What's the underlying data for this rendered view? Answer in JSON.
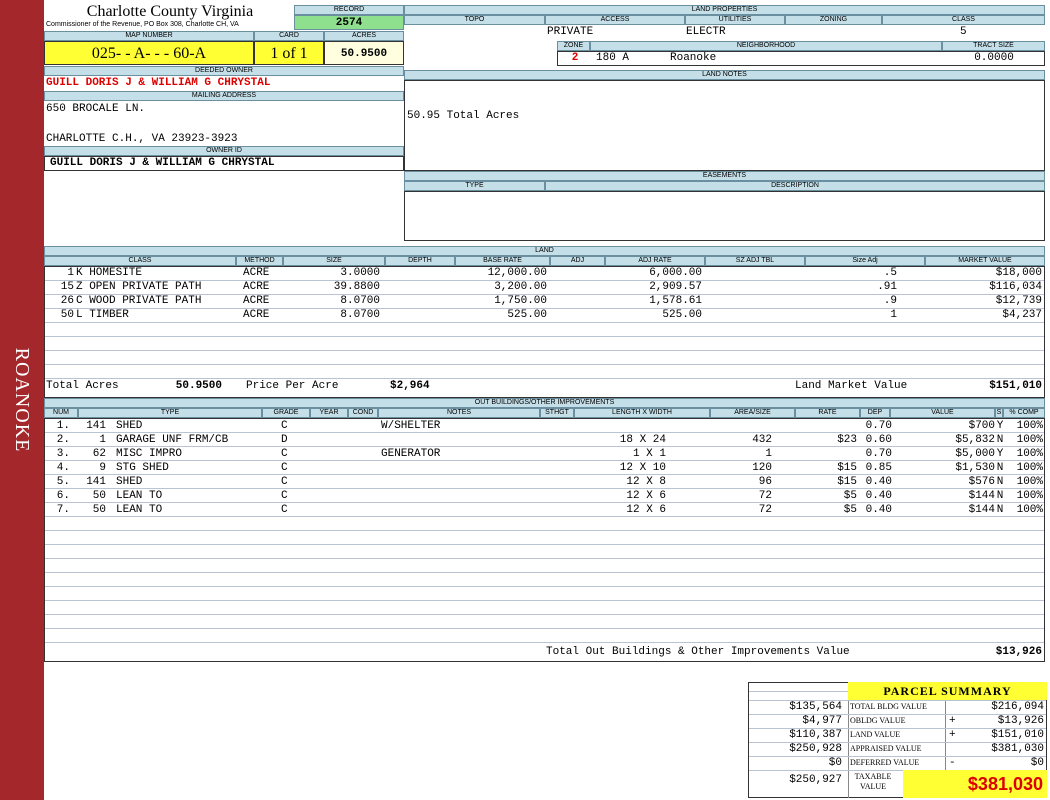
{
  "sidebar": "ROANOKE",
  "header": {
    "title": "Charlotte County Virginia",
    "subtitle": "Commissioner of the Revenue, PO Box 308, Charlotte CH, VA"
  },
  "record": {
    "label": "RECORD",
    "value": "2574"
  },
  "parcel": {
    "labels": [
      "MAP NUMBER",
      "CARD",
      "ACRES"
    ],
    "map_number": "025- - A- - - 60-A",
    "card": "1 of 1",
    "acres": "50.9500"
  },
  "owner": {
    "label": "DEEDED OWNER",
    "name": "GUILL DORIS J & WILLIAM G CHRYSTAL"
  },
  "mailing": {
    "label": "MAILING ADDRESS",
    "lines": [
      "650 BROCALE LN.",
      "CHARLOTTE C.H., VA 23923-3923"
    ]
  },
  "owner_id": {
    "label": "OWNER ID",
    "value": "GUILL DORIS J & WILLIAM G CHRYSTAL"
  },
  "land_properties": {
    "title": "LAND PROPERTIES",
    "headers": [
      "TOPO",
      "ACCESS",
      "UTILITIES",
      "ZONING",
      "CLASS"
    ],
    "access": "PRIVATE",
    "utilities": "ELECTR",
    "class": "5",
    "zone_headers": [
      "ZONE",
      "NEIGHBORHOOD",
      "TRACT SIZE"
    ],
    "zone": "2",
    "neighborhood_code": "180 A",
    "neighborhood": "Roanoke",
    "tract_size": "0.0000"
  },
  "land_notes": {
    "title": "LAND NOTES",
    "text": "50.95 Total Acres"
  },
  "easements": {
    "title": "EASEMENTS",
    "headers": [
      "TYPE",
      "DESCRIPTION"
    ]
  },
  "land": {
    "title": "LAND",
    "headers": [
      "CLASS",
      "METHOD",
      "SIZE",
      "DEPTH",
      "BASE RATE",
      "ADJ",
      "ADJ RATE",
      "SZ ADJ TBL",
      "Size Adj",
      "MARKET VALUE"
    ],
    "rows": [
      {
        "num": "1",
        "class": "K HOMESITE",
        "method": "ACRE",
        "size": "3.0000",
        "base_rate": "12,000.00",
        "adj_rate": "6,000.00",
        "size_adj": ".5",
        "market_value": "$18,000"
      },
      {
        "num": "15",
        "class": "Z OPEN PRIVATE PATH",
        "method": "ACRE",
        "size": "39.8800",
        "base_rate": "3,200.00",
        "adj_rate": "2,909.57",
        "size_adj": ".91",
        "market_value": "$116,034"
      },
      {
        "num": "26",
        "class": "C WOOD PRIVATE PATH",
        "method": "ACRE",
        "size": "8.0700",
        "base_rate": "1,750.00",
        "adj_rate": "1,578.61",
        "size_adj": ".9",
        "market_value": "$12,739"
      },
      {
        "num": "50",
        "class": "L TIMBER",
        "method": "ACRE",
        "size": "8.0700",
        "base_rate": "525.00",
        "adj_rate": "525.00",
        "size_adj": "1",
        "market_value": "$4,237"
      }
    ],
    "totals": {
      "acres_label": "Total Acres",
      "acres": "50.9500",
      "price_label": "Price Per Acre",
      "price": "$2,964",
      "value_label": "Land Market Value",
      "value": "$151,010"
    }
  },
  "outbuildings": {
    "title": "OUT BUILDINGS/OTHER IMPROVEMENTS",
    "headers": [
      "NUM",
      "TYPE",
      "GRADE",
      "YEAR",
      "COND",
      "NOTES",
      "STHGT",
      "LENGTH X WIDTH",
      "AREA/SIZE",
      "RATE",
      "DEP",
      "VALUE",
      "S",
      "% COMP"
    ],
    "rows": [
      {
        "num": "1.",
        "code": "141",
        "type": "SHED",
        "grade": "C",
        "notes": "W/SHELTER",
        "dep": "0.70",
        "value": "$700",
        "s": "Y",
        "comp": "100%"
      },
      {
        "num": "2.",
        "code": "1",
        "type": "GARAGE UNF FRM/CB",
        "grade": "D",
        "dims": "18 X 24",
        "area": "432",
        "rate": "$23",
        "dep": "0.60",
        "value": "$5,832",
        "s": "N",
        "comp": "100%"
      },
      {
        "num": "3.",
        "code": "62",
        "type": "MISC IMPRO",
        "grade": "C",
        "notes": "GENERATOR",
        "dims": "1 X 1",
        "area": "1",
        "dep": "0.70",
        "value": "$5,000",
        "s": "Y",
        "comp": "100%"
      },
      {
        "num": "4.",
        "code": "9",
        "type": "STG SHED",
        "grade": "C",
        "dims": "12 X 10",
        "area": "120",
        "rate": "$15",
        "dep": "0.85",
        "value": "$1,530",
        "s": "N",
        "comp": "100%"
      },
      {
        "num": "5.",
        "code": "141",
        "type": "SHED",
        "grade": "C",
        "dims": "12 X 8",
        "area": "96",
        "rate": "$15",
        "dep": "0.40",
        "value": "$576",
        "s": "N",
        "comp": "100%"
      },
      {
        "num": "6.",
        "code": "50",
        "type": "LEAN TO",
        "grade": "C",
        "dims": "12 X 6",
        "area": "72",
        "rate": "$5",
        "dep": "0.40",
        "value": "$144",
        "s": "N",
        "comp": "100%"
      },
      {
        "num": "7.",
        "code": "50",
        "type": "LEAN TO",
        "grade": "C",
        "dims": "12 X 6",
        "area": "72",
        "rate": "$5",
        "dep": "0.40",
        "value": "$144",
        "s": "N",
        "comp": "100%"
      }
    ],
    "total_label": "Total Out Buildings & Other Improvements Value",
    "total": "$13,926"
  },
  "summary": {
    "title": "PARCEL SUMMARY",
    "prior_values": [
      "$135,564",
      "$4,977",
      "$110,387",
      "$250,928",
      "$0",
      "$250,927"
    ],
    "labels": [
      "TOTAL BLDG VALUE",
      "OBLDG VALUE",
      "LAND VALUE",
      "APPRAISED VALUE",
      "DEFERRED VALUE",
      "TAXABLE VALUE"
    ],
    "signs": [
      null,
      "+",
      "+",
      null,
      "-",
      null
    ],
    "values": [
      "$216,094",
      "$13,926",
      "$151,010",
      "$381,030",
      "$0",
      "$381,030"
    ]
  }
}
